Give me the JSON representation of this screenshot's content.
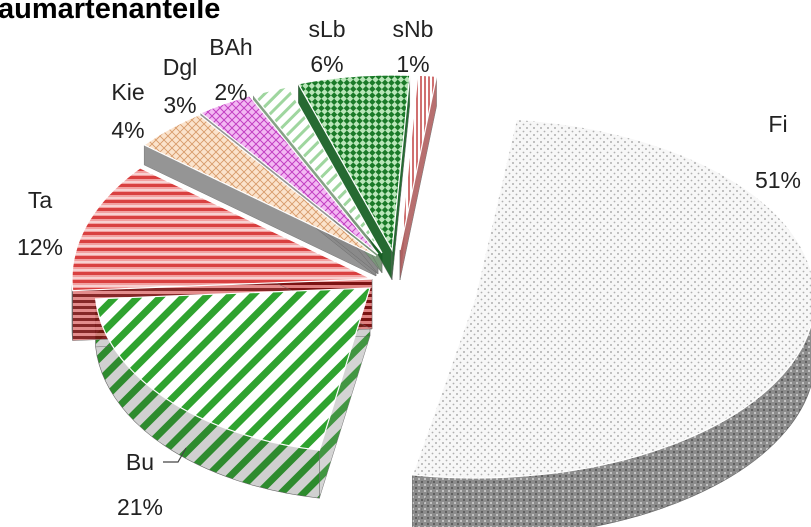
{
  "chart_data": {
    "type": "pie",
    "title": "aumartenanteile",
    "slices": [
      {
        "label": "Fi",
        "value": 51,
        "display": "51%",
        "color": "#efefef",
        "side": "#8c8c8c",
        "pattern": "dots"
      },
      {
        "label": "Bu",
        "value": 21,
        "display": "21%",
        "color": "#4caf50",
        "side": "#2e7d32",
        "pattern": "diag"
      },
      {
        "label": "Ta",
        "value": 12,
        "display": "12%",
        "color": "#e06666",
        "side": "#8b1a1a",
        "pattern": "hstripe"
      },
      {
        "label": "Kie",
        "value": 4,
        "display": "4%",
        "color": "#f6c9a0",
        "side": "#9a7a5c",
        "pattern": "grid"
      },
      {
        "label": "Dgl",
        "value": 3,
        "display": "3%",
        "color": "#e27be6",
        "side": "#8e3b8e",
        "pattern": "grid"
      },
      {
        "label": "BAh",
        "value": 2,
        "display": "2%",
        "color": "#a7d7a7",
        "side": "#5f8f5f",
        "pattern": "diag"
      },
      {
        "label": "sLb",
        "value": 6,
        "display": "6%",
        "color": "#1e8c2f",
        "side": "#0e4d18",
        "pattern": "checker"
      },
      {
        "label": "sNb",
        "value": 1,
        "display": "1%",
        "color": "#e6a0a0",
        "side": "#a05050",
        "pattern": "vstripe"
      }
    ]
  }
}
